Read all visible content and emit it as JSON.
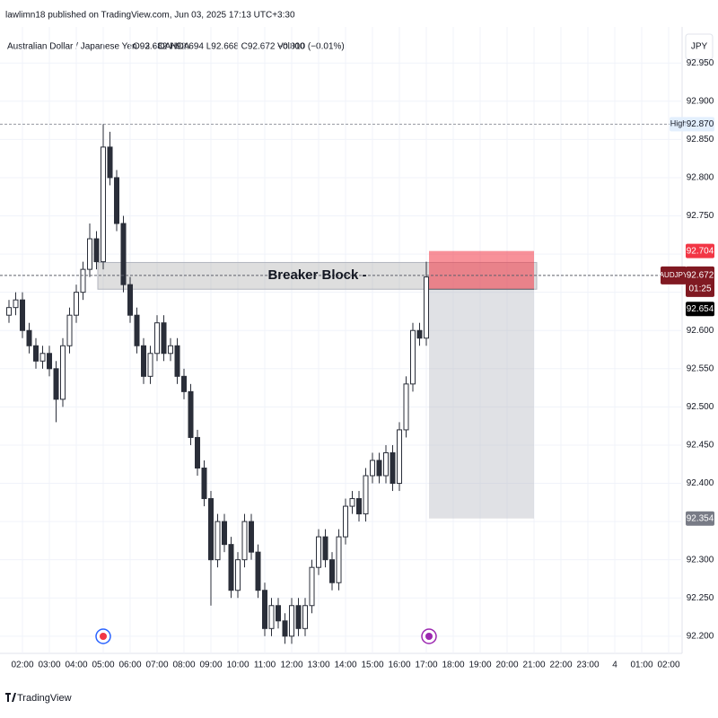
{
  "chart_data": {
    "type": "candlestick",
    "title": "lawlimn18 published on TradingView.com, Jun 03, 2025 17:13 UTC+3:30",
    "subtitle": "Australian Dollar / Japanese Yen · 3 · OANDA",
    "ohlc_text": "O92.682 H92.694 L92.668 C92.672 −0.010 (−0.01%)",
    "volume_text": "Vol300",
    "currency": "JPY",
    "footer": "TradingView",
    "color": "#2a2e39",
    "grid": true,
    "xlim": [
      1.333,
      26.5
    ],
    "xticks": [
      {
        "value": 2,
        "label": "02:00"
      },
      {
        "value": 3,
        "label": "03:00"
      },
      {
        "value": 4,
        "label": "04:00"
      },
      {
        "value": 5,
        "label": "05:00"
      },
      {
        "value": 6,
        "label": "06:00"
      },
      {
        "value": 7,
        "label": "07:00"
      },
      {
        "value": 8,
        "label": "08:00"
      },
      {
        "value": 9,
        "label": "09:00"
      },
      {
        "value": 10,
        "label": "10:00"
      },
      {
        "value": 11,
        "label": "11:00"
      },
      {
        "value": 12,
        "label": "12:00"
      },
      {
        "value": 13,
        "label": "13:00"
      },
      {
        "value": 14,
        "label": "14:00"
      },
      {
        "value": 15,
        "label": "15:00"
      },
      {
        "value": 16,
        "label": "16:00"
      },
      {
        "value": 17,
        "label": "17:00"
      },
      {
        "value": 18,
        "label": "18:00"
      },
      {
        "value": 19,
        "label": "19:00"
      },
      {
        "value": 20,
        "label": "20:00"
      },
      {
        "value": 21,
        "label": "21:00"
      },
      {
        "value": 22,
        "label": "22:00"
      },
      {
        "value": 23,
        "label": "23:00"
      },
      {
        "value": 24,
        "label": "4"
      },
      {
        "value": 25,
        "label": "01:00"
      },
      {
        "value": 26,
        "label": "02:00"
      }
    ],
    "ylim": [
      92.181,
      92.962
    ],
    "yticks": [
      {
        "value": 92.95,
        "label": "92.950"
      },
      {
        "value": 92.9,
        "label": "92.900"
      },
      {
        "value": 92.85,
        "label": "92.850"
      },
      {
        "value": 92.8,
        "label": "92.800"
      },
      {
        "value": 92.75,
        "label": "92.750"
      },
      {
        "value": 92.7,
        "label": "92.700"
      },
      {
        "value": 92.65,
        "label": "92.650"
      },
      {
        "value": 92.6,
        "label": "92.600"
      },
      {
        "value": 92.55,
        "label": "92.550"
      },
      {
        "value": 92.5,
        "label": "92.500"
      },
      {
        "value": 92.45,
        "label": "92.450"
      },
      {
        "value": 92.4,
        "label": "92.400"
      },
      {
        "value": 92.35,
        "label": "92.350"
      },
      {
        "value": 92.3,
        "label": "92.300"
      },
      {
        "value": 92.25,
        "label": "92.250"
      },
      {
        "value": 92.2,
        "label": "92.200"
      }
    ],
    "x": [
      1.5,
      1.75,
      2,
      2.25,
      2.5,
      2.75,
      3,
      3.25,
      3.5,
      3.75,
      4,
      4.25,
      4.5,
      4.75,
      5,
      5.25,
      5.5,
      5.75,
      6,
      6.25,
      6.5,
      6.75,
      7,
      7.25,
      7.5,
      7.75,
      8,
      8.25,
      8.5,
      8.75,
      9,
      9.25,
      9.5,
      9.75,
      10,
      10.25,
      10.5,
      10.75,
      11,
      11.25,
      11.5,
      11.75,
      12,
      12.25,
      12.5,
      12.75,
      13,
      13.25,
      13.5,
      13.75,
      14,
      14.25,
      14.5,
      14.75,
      15,
      15.25,
      15.5,
      15.75,
      16,
      16.25,
      16.5,
      16.75,
      17
    ],
    "open": [
      92.62,
      92.63,
      92.64,
      92.6,
      92.58,
      92.56,
      92.57,
      92.55,
      92.51,
      92.58,
      92.62,
      92.65,
      92.68,
      92.72,
      92.69,
      92.84,
      92.8,
      92.74,
      92.66,
      92.62,
      92.58,
      92.54,
      92.57,
      92.61,
      92.57,
      92.58,
      92.54,
      92.52,
      92.46,
      92.42,
      92.38,
      92.3,
      92.35,
      92.32,
      92.26,
      92.3,
      92.35,
      92.31,
      92.26,
      92.21,
      92.24,
      92.22,
      92.2,
      92.24,
      92.21,
      92.24,
      92.29,
      92.33,
      92.3,
      92.27,
      92.33,
      92.37,
      92.38,
      92.36,
      92.41,
      92.43,
      92.41,
      92.44,
      92.4,
      92.47,
      92.53,
      92.6,
      92.59
    ],
    "high": [
      92.64,
      92.65,
      92.65,
      92.61,
      92.59,
      92.58,
      92.58,
      92.56,
      92.59,
      92.63,
      92.66,
      92.69,
      92.74,
      92.73,
      92.87,
      92.86,
      92.81,
      92.75,
      92.67,
      92.63,
      92.59,
      92.58,
      92.62,
      92.62,
      92.59,
      92.59,
      92.55,
      92.53,
      92.47,
      92.43,
      92.39,
      92.36,
      92.36,
      92.33,
      92.31,
      92.36,
      92.36,
      92.32,
      92.27,
      92.25,
      92.25,
      92.23,
      92.25,
      92.25,
      92.25,
      92.3,
      92.34,
      92.34,
      92.31,
      92.34,
      92.38,
      92.39,
      92.39,
      92.42,
      92.44,
      92.44,
      92.45,
      92.45,
      92.48,
      92.54,
      92.61,
      92.61,
      92.69
    ],
    "low": [
      92.61,
      92.62,
      92.59,
      92.57,
      92.55,
      92.55,
      92.54,
      92.48,
      92.5,
      92.57,
      92.61,
      92.64,
      92.67,
      92.68,
      92.68,
      92.79,
      92.73,
      92.65,
      92.61,
      92.57,
      92.53,
      92.53,
      92.56,
      92.56,
      92.56,
      92.53,
      92.51,
      92.45,
      92.41,
      92.37,
      92.24,
      92.29,
      92.31,
      92.25,
      92.25,
      92.29,
      92.3,
      92.25,
      92.2,
      92.2,
      92.21,
      92.19,
      92.19,
      92.2,
      92.2,
      92.23,
      92.28,
      92.29,
      92.26,
      92.26,
      92.32,
      92.36,
      92.35,
      92.35,
      92.4,
      92.4,
      92.4,
      92.39,
      92.39,
      92.46,
      92.52,
      92.58,
      92.58
    ],
    "close": [
      92.63,
      92.64,
      92.6,
      92.58,
      92.56,
      92.57,
      92.55,
      92.51,
      92.58,
      92.62,
      92.65,
      92.68,
      92.72,
      92.69,
      92.84,
      92.8,
      92.74,
      92.66,
      92.62,
      92.58,
      92.54,
      92.57,
      92.61,
      92.57,
      92.58,
      92.54,
      92.52,
      92.46,
      92.42,
      92.38,
      92.3,
      92.35,
      92.32,
      92.26,
      92.3,
      92.35,
      92.31,
      92.26,
      92.21,
      92.24,
      92.22,
      92.2,
      92.24,
      92.21,
      92.24,
      92.29,
      92.33,
      92.3,
      92.27,
      92.33,
      92.37,
      92.38,
      92.36,
      92.41,
      92.43,
      92.41,
      92.44,
      92.4,
      92.47,
      92.53,
      92.6,
      92.59,
      92.67
    ],
    "high_label": "High",
    "high_value": {
      "value": 92.87,
      "label": "92.870"
    },
    "last_symbol": "AUDJPY",
    "last_price": 92.672,
    "countdown": "01:25",
    "breaker_block": {
      "label": "Breaker Block -",
      "top": 92.689,
      "bottom": 92.654,
      "x_start": 4.8,
      "x_end": 21.1
    },
    "position": {
      "x_start": 17.1,
      "x_end": 21.0,
      "stop": 92.704,
      "entry": 92.654,
      "target": 92.354
    }
  }
}
